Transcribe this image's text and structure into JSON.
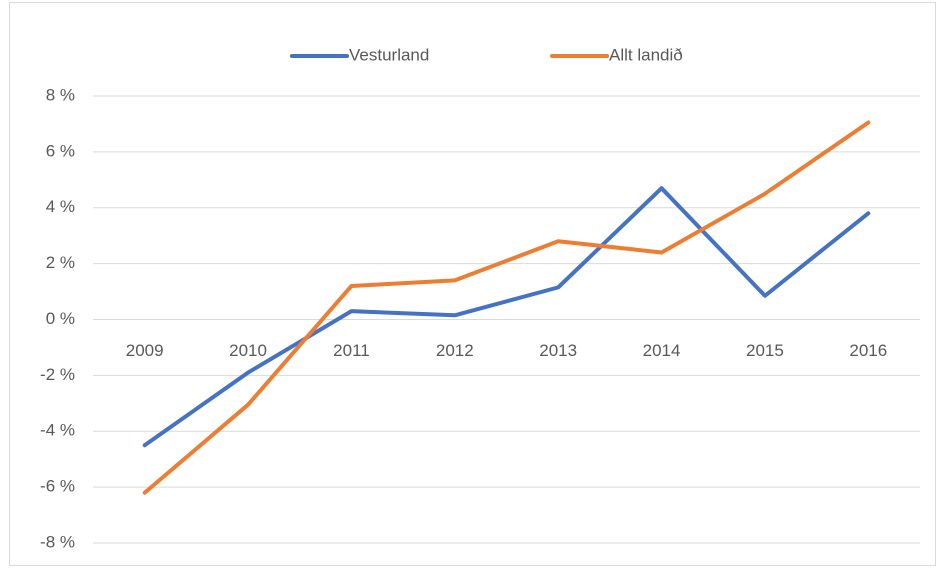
{
  "chart_data": {
    "type": "line",
    "categories": [
      "2009",
      "2010",
      "2011",
      "2012",
      "2013",
      "2014",
      "2015",
      "2016"
    ],
    "series": [
      {
        "name": "Vesturland",
        "color": "#4472c4",
        "values": [
          -4.5,
          -1.9,
          0.3,
          0.15,
          1.15,
          4.7,
          0.85,
          3.8
        ]
      },
      {
        "name": "Allt landið",
        "color": "#ed7d31",
        "values": [
          -6.2,
          -3.05,
          1.2,
          1.4,
          2.8,
          2.4,
          4.5,
          7.05
        ]
      }
    ],
    "ylim": [
      -8,
      8
    ],
    "yticks": [
      {
        "value": -8,
        "label": "-8 %"
      },
      {
        "value": -6,
        "label": "-6 %"
      },
      {
        "value": -4,
        "label": "-4 %"
      },
      {
        "value": -2,
        "label": "-2 %"
      },
      {
        "value": 0,
        "label": "0 %"
      },
      {
        "value": 2,
        "label": "2 %"
      },
      {
        "value": 4,
        "label": "4 %"
      },
      {
        "value": 6,
        "label": "6 %"
      },
      {
        "value": 8,
        "label": "8 %"
      }
    ],
    "grid": true,
    "legend": "top"
  }
}
